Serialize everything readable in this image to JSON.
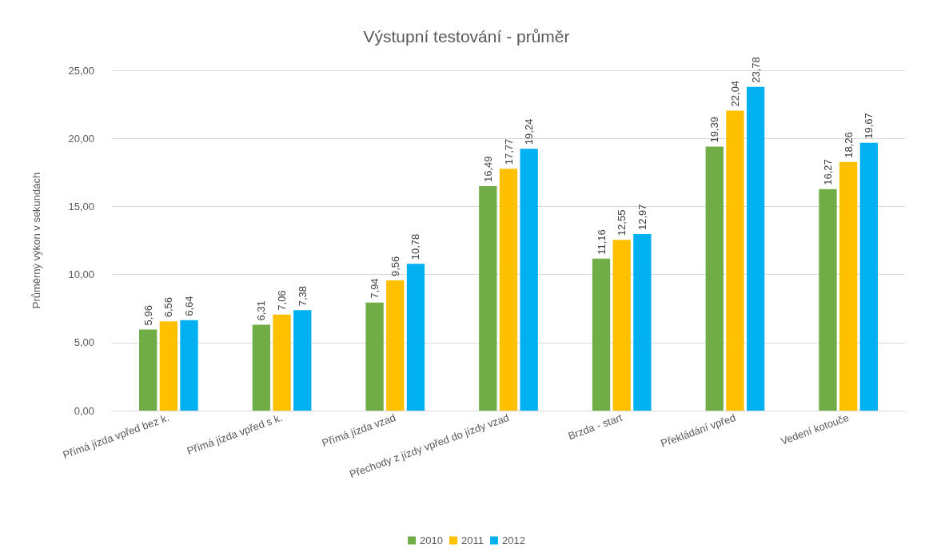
{
  "chart_data": {
    "type": "bar",
    "title": "Výstupní testování - průměr",
    "ylabel": "Průměrný výkon v sekundách",
    "categories": [
      "Přímá jízda vpřed bez k.",
      "Přímá jízda vpřed s k.",
      "Přímá jízda vzad",
      "Přechody z jízdy vpřed do jízdy vzad",
      "Brzda - start",
      "Překládání vpřed",
      "Vedení kotouče"
    ],
    "series": [
      {
        "name": "2010",
        "color": "#70ad47",
        "values": [
          5.96,
          6.31,
          7.94,
          16.49,
          11.16,
          19.39,
          16.27
        ],
        "value_labels": [
          "5,96",
          "6,31",
          "7,94",
          "16,49",
          "11,16",
          "19,39",
          "16,27"
        ]
      },
      {
        "name": "2011",
        "color": "#ffc000",
        "values": [
          6.56,
          7.06,
          9.56,
          17.77,
          12.55,
          22.04,
          18.26
        ],
        "value_labels": [
          "6,56",
          "7,06",
          "9,56",
          "17,77",
          "12,55",
          "22,04",
          "18,26"
        ]
      },
      {
        "name": "2012",
        "color": "#00b0f0",
        "values": [
          6.64,
          7.38,
          10.78,
          19.24,
          12.97,
          23.78,
          19.67
        ],
        "value_labels": [
          "6,64",
          "7,38",
          "10,78",
          "19,24",
          "12,97",
          "23,78",
          "19,67"
        ]
      }
    ],
    "ylim": [
      0,
      25
    ],
    "yticks": [
      {
        "value": 0,
        "label": "0,00"
      },
      {
        "value": 5,
        "label": "5,00"
      },
      {
        "value": 10,
        "label": "10,00"
      },
      {
        "value": 15,
        "label": "15,00"
      },
      {
        "value": 20,
        "label": "20,00"
      },
      {
        "value": 25,
        "label": "25,00"
      }
    ],
    "grid": "y",
    "legend": "bottom"
  }
}
